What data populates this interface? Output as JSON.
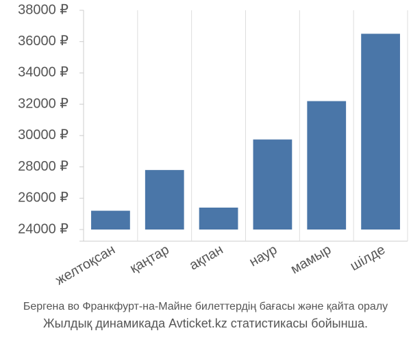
{
  "chart_data": {
    "type": "bar",
    "categories": [
      "желтоқсан",
      "қаңтар",
      "ақпан",
      "наур",
      "мамыр",
      "шілде"
    ],
    "values": [
      25200,
      27800,
      25400,
      29750,
      32200,
      36500
    ],
    "color": "#4a76a8",
    "ylim": [
      24000,
      38000
    ],
    "yticks": [
      {
        "value": 24000,
        "label": "24000 ₽"
      },
      {
        "value": 26000,
        "label": "26000 ₽"
      },
      {
        "value": 28000,
        "label": "28000 ₽"
      },
      {
        "value": 30000,
        "label": "30000 ₽"
      },
      {
        "value": 32000,
        "label": "32000 ₽"
      },
      {
        "value": 34000,
        "label": "34000 ₽"
      },
      {
        "value": 36000,
        "label": "36000 ₽"
      },
      {
        "value": 38000,
        "label": "38000 ₽"
      }
    ],
    "grid": true,
    "caption": [
      "Бергена во Франкфурт-на-Майне билеттердің бағасы және қайта оралу",
      "Жылдық динамикада Avticket.kz статистикасы бойынша."
    ]
  }
}
